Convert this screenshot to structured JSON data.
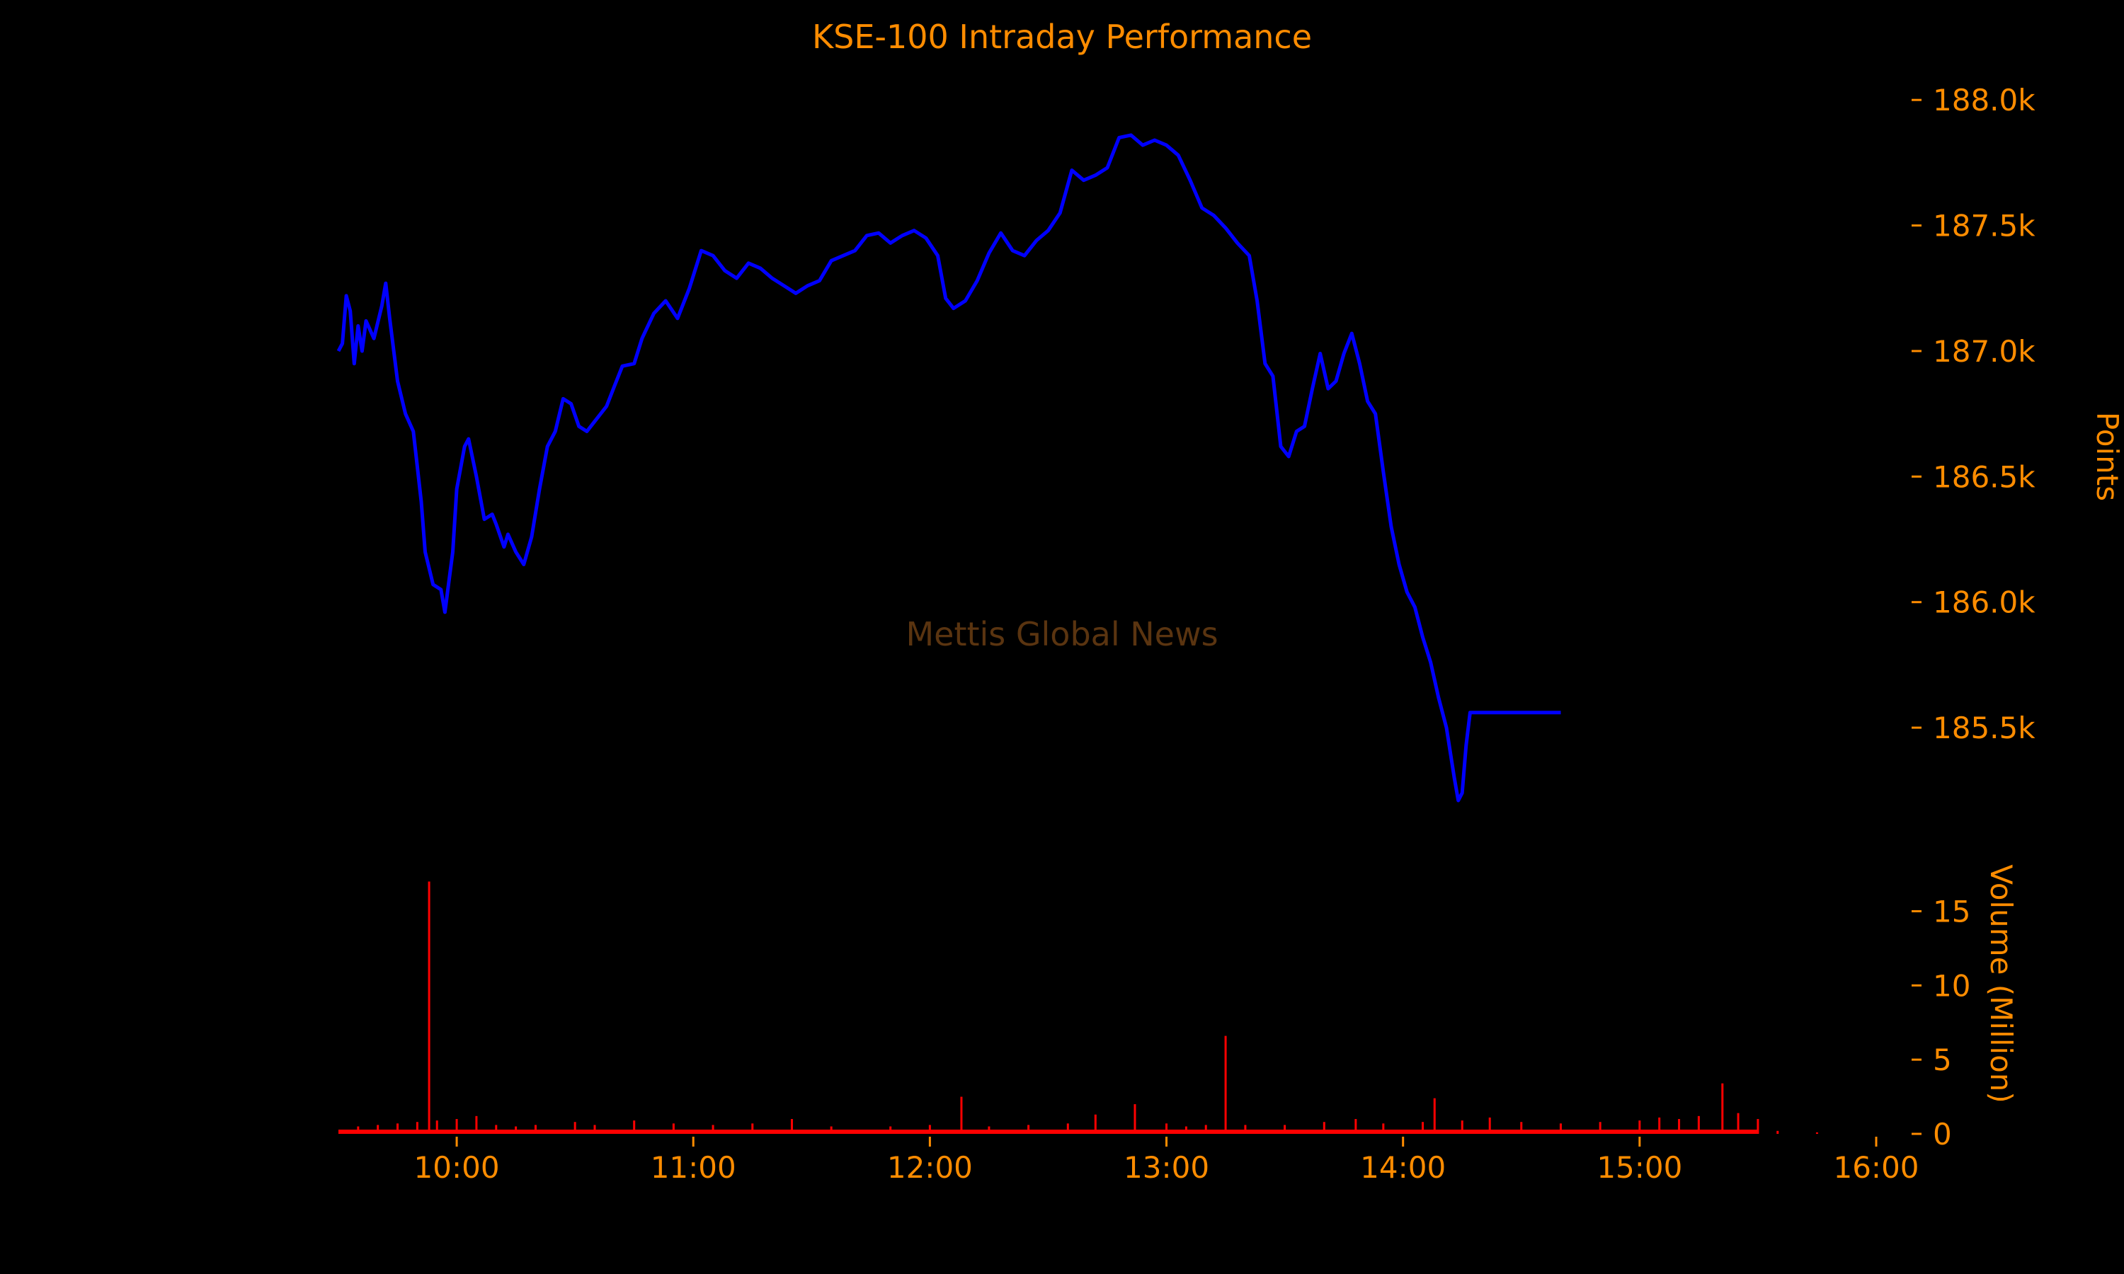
{
  "chart_data": {
    "type": "line",
    "title": "KSE-100 Intraday Performance",
    "watermark": "Mettis Global News",
    "colors": {
      "background": "#000000",
      "text": "#FF8C00",
      "index_line": "#0000FF",
      "volume_bars": "#FF0000",
      "watermark": "#5A3410"
    },
    "x_axis": {
      "type": "time",
      "range": [
        "09:30",
        "16:00"
      ],
      "tick_labels": [
        "10:00",
        "11:00",
        "12:00",
        "13:00",
        "14:00",
        "15:00",
        "16:00"
      ]
    },
    "price_panel": {
      "ylabel": "Points",
      "axis_side": "right",
      "ylim": [
        185100,
        188150
      ],
      "tick_values": [
        185500,
        186000,
        186500,
        187000,
        187500,
        188000
      ],
      "tick_labels": [
        "185.5k",
        "186.0k",
        "186.5k",
        "187.0k",
        "187.5k",
        "188.0k"
      ],
      "series": [
        {
          "points": [
            [
              "09:30",
              187000
            ],
            [
              "09:31",
              187030
            ],
            [
              "09:32",
              187220
            ],
            [
              "09:33",
              187160
            ],
            [
              "09:34",
              186950
            ],
            [
              "09:35",
              187100
            ],
            [
              "09:36",
              187000
            ],
            [
              "09:37",
              187120
            ],
            [
              "09:39",
              187050
            ],
            [
              "09:41",
              187180
            ],
            [
              "09:42",
              187270
            ],
            [
              "09:43",
              187130
            ],
            [
              "09:45",
              186880
            ],
            [
              "09:47",
              186750
            ],
            [
              "09:49",
              186680
            ],
            [
              "09:51",
              186400
            ],
            [
              "09:52",
              186200
            ],
            [
              "09:54",
              186070
            ],
            [
              "09:56",
              186050
            ],
            [
              "09:57",
              185960
            ],
            [
              "09:59",
              186200
            ],
            [
              "10:00",
              186450
            ],
            [
              "10:02",
              186620
            ],
            [
              "10:03",
              186650
            ],
            [
              "10:05",
              186500
            ],
            [
              "10:07",
              186330
            ],
            [
              "10:09",
              186350
            ],
            [
              "10:10",
              186310
            ],
            [
              "10:12",
              186220
            ],
            [
              "10:13",
              186270
            ],
            [
              "10:15",
              186200
            ],
            [
              "10:17",
              186150
            ],
            [
              "10:19",
              186260
            ],
            [
              "10:21",
              186450
            ],
            [
              "10:23",
              186620
            ],
            [
              "10:25",
              186680
            ],
            [
              "10:27",
              186810
            ],
            [
              "10:29",
              186790
            ],
            [
              "10:31",
              186700
            ],
            [
              "10:33",
              186680
            ],
            [
              "10:35",
              186720
            ],
            [
              "10:38",
              186780
            ],
            [
              "10:40",
              186860
            ],
            [
              "10:42",
              186940
            ],
            [
              "10:45",
              186950
            ],
            [
              "10:47",
              187050
            ],
            [
              "10:50",
              187150
            ],
            [
              "10:53",
              187200
            ],
            [
              "10:56",
              187130
            ],
            [
              "10:59",
              187250
            ],
            [
              "11:02",
              187400
            ],
            [
              "11:05",
              187380
            ],
            [
              "11:08",
              187320
            ],
            [
              "11:11",
              187290
            ],
            [
              "11:14",
              187350
            ],
            [
              "11:17",
              187330
            ],
            [
              "11:20",
              187290
            ],
            [
              "11:23",
              187260
            ],
            [
              "11:26",
              187230
            ],
            [
              "11:29",
              187260
            ],
            [
              "11:32",
              187280
            ],
            [
              "11:35",
              187360
            ],
            [
              "11:38",
              187380
            ],
            [
              "11:41",
              187400
            ],
            [
              "11:44",
              187460
            ],
            [
              "11:47",
              187470
            ],
            [
              "11:50",
              187430
            ],
            [
              "11:53",
              187460
            ],
            [
              "11:56",
              187480
            ],
            [
              "11:59",
              187450
            ],
            [
              "12:02",
              187380
            ],
            [
              "12:04",
              187210
            ],
            [
              "12:06",
              187170
            ],
            [
              "12:09",
              187200
            ],
            [
              "12:12",
              187280
            ],
            [
              "12:15",
              187390
            ],
            [
              "12:18",
              187470
            ],
            [
              "12:21",
              187400
            ],
            [
              "12:24",
              187380
            ],
            [
              "12:27",
              187440
            ],
            [
              "12:30",
              187480
            ],
            [
              "12:33",
              187550
            ],
            [
              "12:36",
              187720
            ],
            [
              "12:39",
              187680
            ],
            [
              "12:42",
              187700
            ],
            [
              "12:45",
              187730
            ],
            [
              "12:48",
              187850
            ],
            [
              "12:51",
              187860
            ],
            [
              "12:54",
              187820
            ],
            [
              "12:57",
              187840
            ],
            [
              "13:00",
              187820
            ],
            [
              "13:03",
              187780
            ],
            [
              "13:06",
              187680
            ],
            [
              "13:09",
              187570
            ],
            [
              "13:12",
              187540
            ],
            [
              "13:15",
              187490
            ],
            [
              "13:18",
              187430
            ],
            [
              "13:21",
              187380
            ],
            [
              "13:23",
              187200
            ],
            [
              "13:25",
              186950
            ],
            [
              "13:27",
              186900
            ],
            [
              "13:29",
              186620
            ],
            [
              "13:31",
              186580
            ],
            [
              "13:33",
              186680
            ],
            [
              "13:35",
              186700
            ],
            [
              "13:37",
              186850
            ],
            [
              "13:39",
              186990
            ],
            [
              "13:41",
              186850
            ],
            [
              "13:43",
              186880
            ],
            [
              "13:45",
              186990
            ],
            [
              "13:47",
              187070
            ],
            [
              "13:49",
              186950
            ],
            [
              "13:51",
              186800
            ],
            [
              "13:53",
              186750
            ],
            [
              "13:55",
              186520
            ],
            [
              "13:57",
              186300
            ],
            [
              "13:59",
              186150
            ],
            [
              "14:01",
              186040
            ],
            [
              "14:03",
              185980
            ],
            [
              "14:05",
              185860
            ],
            [
              "14:07",
              185760
            ],
            [
              "14:09",
              185620
            ],
            [
              "14:11",
              185500
            ],
            [
              "14:13",
              185300
            ],
            [
              "14:14",
              185210
            ],
            [
              "14:15",
              185240
            ],
            [
              "14:16",
              185430
            ],
            [
              "14:17",
              185560
            ],
            [
              "14:40",
              185560
            ]
          ]
        }
      ]
    },
    "volume_panel": {
      "ylabel": "Volume (Million)",
      "axis_side": "right",
      "ylim": [
        0,
        17.5
      ],
      "tick_values": [
        0,
        5,
        10,
        15
      ],
      "tick_labels": [
        "0",
        "5",
        "10",
        "15"
      ],
      "bars": [
        [
          "09:35",
          0.5
        ],
        [
          "09:40",
          0.6
        ],
        [
          "09:45",
          0.7
        ],
        [
          "09:50",
          0.8
        ],
        [
          "09:53",
          17.0
        ],
        [
          "09:55",
          0.9
        ],
        [
          "10:00",
          1.0
        ],
        [
          "10:05",
          1.2
        ],
        [
          "10:10",
          0.6
        ],
        [
          "10:15",
          0.5
        ],
        [
          "10:20",
          0.6
        ],
        [
          "10:30",
          0.8
        ],
        [
          "10:35",
          0.6
        ],
        [
          "10:45",
          0.9
        ],
        [
          "10:55",
          0.7
        ],
        [
          "11:05",
          0.6
        ],
        [
          "11:15",
          0.7
        ],
        [
          "11:25",
          1.0
        ],
        [
          "11:35",
          0.5
        ],
        [
          "11:50",
          0.5
        ],
        [
          "12:00",
          0.6
        ],
        [
          "12:08",
          2.5
        ],
        [
          "12:15",
          0.5
        ],
        [
          "12:25",
          0.6
        ],
        [
          "12:35",
          0.7
        ],
        [
          "12:42",
          1.3
        ],
        [
          "12:52",
          2.0
        ],
        [
          "13:00",
          0.7
        ],
        [
          "13:05",
          0.5
        ],
        [
          "13:10",
          0.6
        ],
        [
          "13:15",
          6.6
        ],
        [
          "13:20",
          0.6
        ],
        [
          "13:30",
          0.6
        ],
        [
          "13:40",
          0.8
        ],
        [
          "13:48",
          1.0
        ],
        [
          "13:55",
          0.7
        ],
        [
          "14:05",
          0.8
        ],
        [
          "14:08",
          2.4
        ],
        [
          "14:15",
          0.9
        ],
        [
          "14:22",
          1.1
        ],
        [
          "14:30",
          0.8
        ],
        [
          "14:40",
          0.7
        ],
        [
          "14:50",
          0.8
        ],
        [
          "15:00",
          0.9
        ],
        [
          "15:05",
          1.1
        ],
        [
          "15:10",
          1.0
        ],
        [
          "15:15",
          1.2
        ],
        [
          "15:21",
          3.4
        ],
        [
          "15:25",
          1.4
        ],
        [
          "15:30",
          1.0
        ],
        [
          "15:35",
          0.2
        ],
        [
          "15:45",
          0.1
        ]
      ]
    }
  }
}
